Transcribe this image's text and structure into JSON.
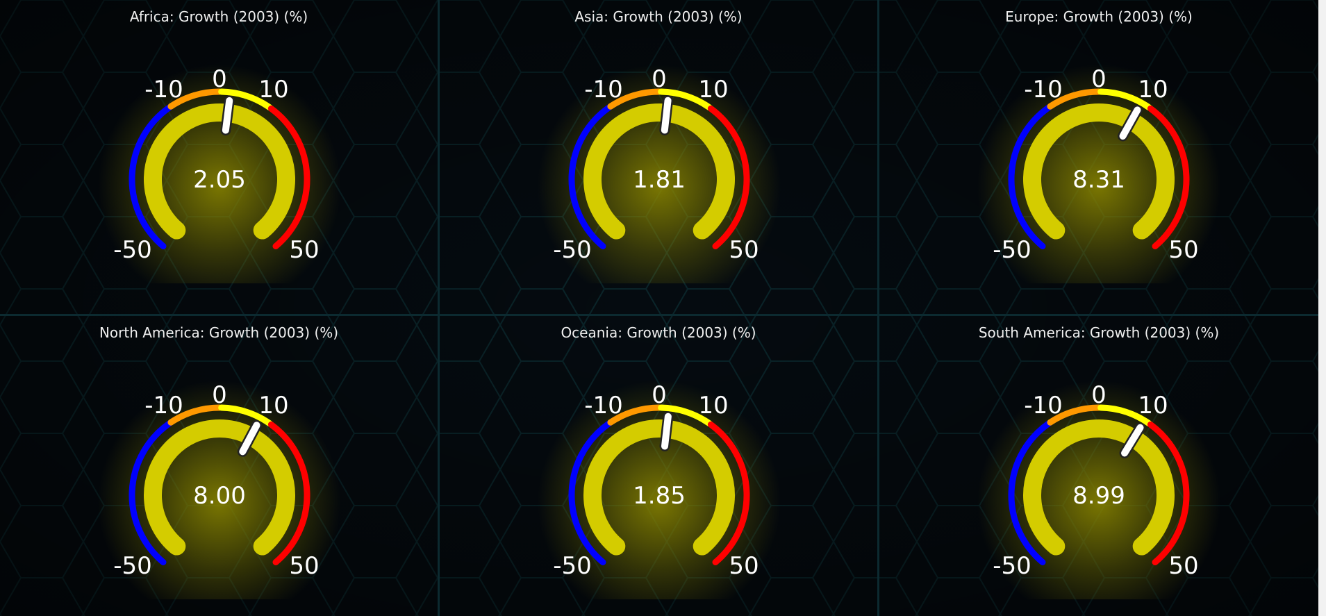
{
  "colors": {
    "background": "#050b10",
    "hex_lines": "#0f3a40",
    "band_low": "#0000ff",
    "band_mid_low": "#ff9900",
    "band_mid_high": "#ffff00",
    "band_high": "#ff0000",
    "value_arc": "#d4cc00",
    "glow": "#8f8a00",
    "needle": "#ffffff"
  },
  "chart_data": [
    {
      "type": "gauge",
      "title": "Africa: Growth (2003) (%)",
      "value": 2.05,
      "value_label": "2.05",
      "min": -50,
      "max": 50,
      "tick_labels": [
        "-50",
        "-10",
        "0",
        "10",
        "50"
      ],
      "bands": [
        [
          -50,
          -10,
          "blue"
        ],
        [
          -10,
          0,
          "orange"
        ],
        [
          0,
          10,
          "yellow"
        ],
        [
          10,
          50,
          "red"
        ]
      ]
    },
    {
      "type": "gauge",
      "title": "Asia: Growth (2003) (%)",
      "value": 1.81,
      "value_label": "1.81",
      "min": -50,
      "max": 50,
      "tick_labels": [
        "-50",
        "-10",
        "0",
        "10",
        "50"
      ],
      "bands": [
        [
          -50,
          -10,
          "blue"
        ],
        [
          -10,
          0,
          "orange"
        ],
        [
          0,
          10,
          "yellow"
        ],
        [
          10,
          50,
          "red"
        ]
      ]
    },
    {
      "type": "gauge",
      "title": "Europe: Growth (2003) (%)",
      "value": 8.31,
      "value_label": "8.31",
      "min": -50,
      "max": 50,
      "tick_labels": [
        "-50",
        "-10",
        "0",
        "10",
        "50"
      ],
      "bands": [
        [
          -50,
          -10,
          "blue"
        ],
        [
          -10,
          0,
          "orange"
        ],
        [
          0,
          10,
          "yellow"
        ],
        [
          10,
          50,
          "red"
        ]
      ]
    },
    {
      "type": "gauge",
      "title": "North America: Growth (2003) (%)",
      "value": 8.0,
      "value_label": "8.00",
      "min": -50,
      "max": 50,
      "tick_labels": [
        "-50",
        "-10",
        "0",
        "10",
        "50"
      ],
      "bands": [
        [
          -50,
          -10,
          "blue"
        ],
        [
          -10,
          0,
          "orange"
        ],
        [
          0,
          10,
          "yellow"
        ],
        [
          10,
          50,
          "red"
        ]
      ]
    },
    {
      "type": "gauge",
      "title": "Oceania: Growth (2003) (%)",
      "value": 1.85,
      "value_label": "1.85",
      "min": -50,
      "max": 50,
      "tick_labels": [
        "-50",
        "-10",
        "0",
        "10",
        "50"
      ],
      "bands": [
        [
          -50,
          -10,
          "blue"
        ],
        [
          -10,
          0,
          "orange"
        ],
        [
          0,
          10,
          "yellow"
        ],
        [
          10,
          50,
          "red"
        ]
      ]
    },
    {
      "type": "gauge",
      "title": "South America: Growth (2003) (%)",
      "value": 8.99,
      "value_label": "8.99",
      "min": -50,
      "max": 50,
      "tick_labels": [
        "-50",
        "-10",
        "0",
        "10",
        "50"
      ],
      "bands": [
        [
          -50,
          -10,
          "blue"
        ],
        [
          -10,
          0,
          "orange"
        ],
        [
          0,
          10,
          "yellow"
        ],
        [
          10,
          50,
          "red"
        ]
      ]
    }
  ]
}
